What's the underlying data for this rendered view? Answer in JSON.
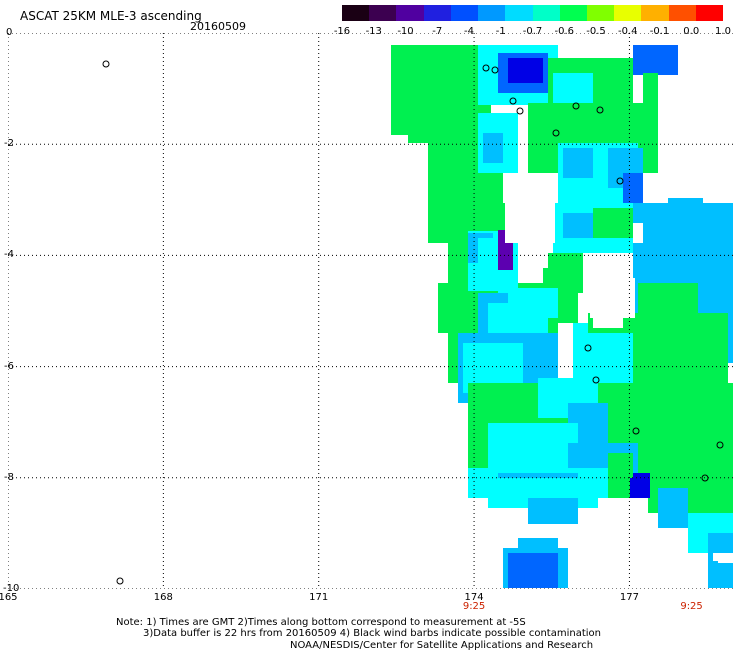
{
  "title": "ASCAT 25KM MLE-3 ascending",
  "date": "20160509",
  "colorbar": {
    "labels": [
      "-16",
      "-13",
      "-10",
      "-7",
      "-4",
      "-1",
      "-0.7",
      "-0.6",
      "-0.5",
      "-0.4",
      "-0.1",
      "0.0",
      "1.0"
    ],
    "colors": [
      "#1a0014",
      "#3c0050",
      "#5000a0",
      "#2020e0",
      "#0050ff",
      "#0099ff",
      "#00dcff",
      "#00ffc8",
      "#00ff50",
      "#80ff00",
      "#e8ff00",
      "#ffb000",
      "#ff5000",
      "#ff0000"
    ]
  },
  "map": {
    "lon_ticks": [
      "165",
      "168",
      "171",
      "174",
      "177"
    ],
    "lat_ticks": [
      "0",
      "-2",
      "-4",
      "-6",
      "-8",
      "-10"
    ],
    "lon_range": [
      165,
      179
    ],
    "lat_range": [
      -10,
      0
    ],
    "times": [
      {
        "lon": 174,
        "label": "9:25"
      },
      {
        "lon": 178.2,
        "label": "9:25"
      }
    ],
    "grid": "dotted",
    "colors": {
      "green": "#00f050",
      "cyan": "#00ffff",
      "lightblue": "#00bfff",
      "blue": "#0066ff",
      "deepblue": "#0000e6",
      "purple": "#5c00b0"
    }
  },
  "notes": {
    "line1": "Note: 1) Times are GMT 2)Times along bottom correspond to measurement at -5S",
    "line2": "3)Data buffer is 22 hrs from 20160509 4) Black wind barbs indicate possible contamination",
    "line3": "NOAA/NESDIS/Center for Satellite Applications and Research"
  }
}
